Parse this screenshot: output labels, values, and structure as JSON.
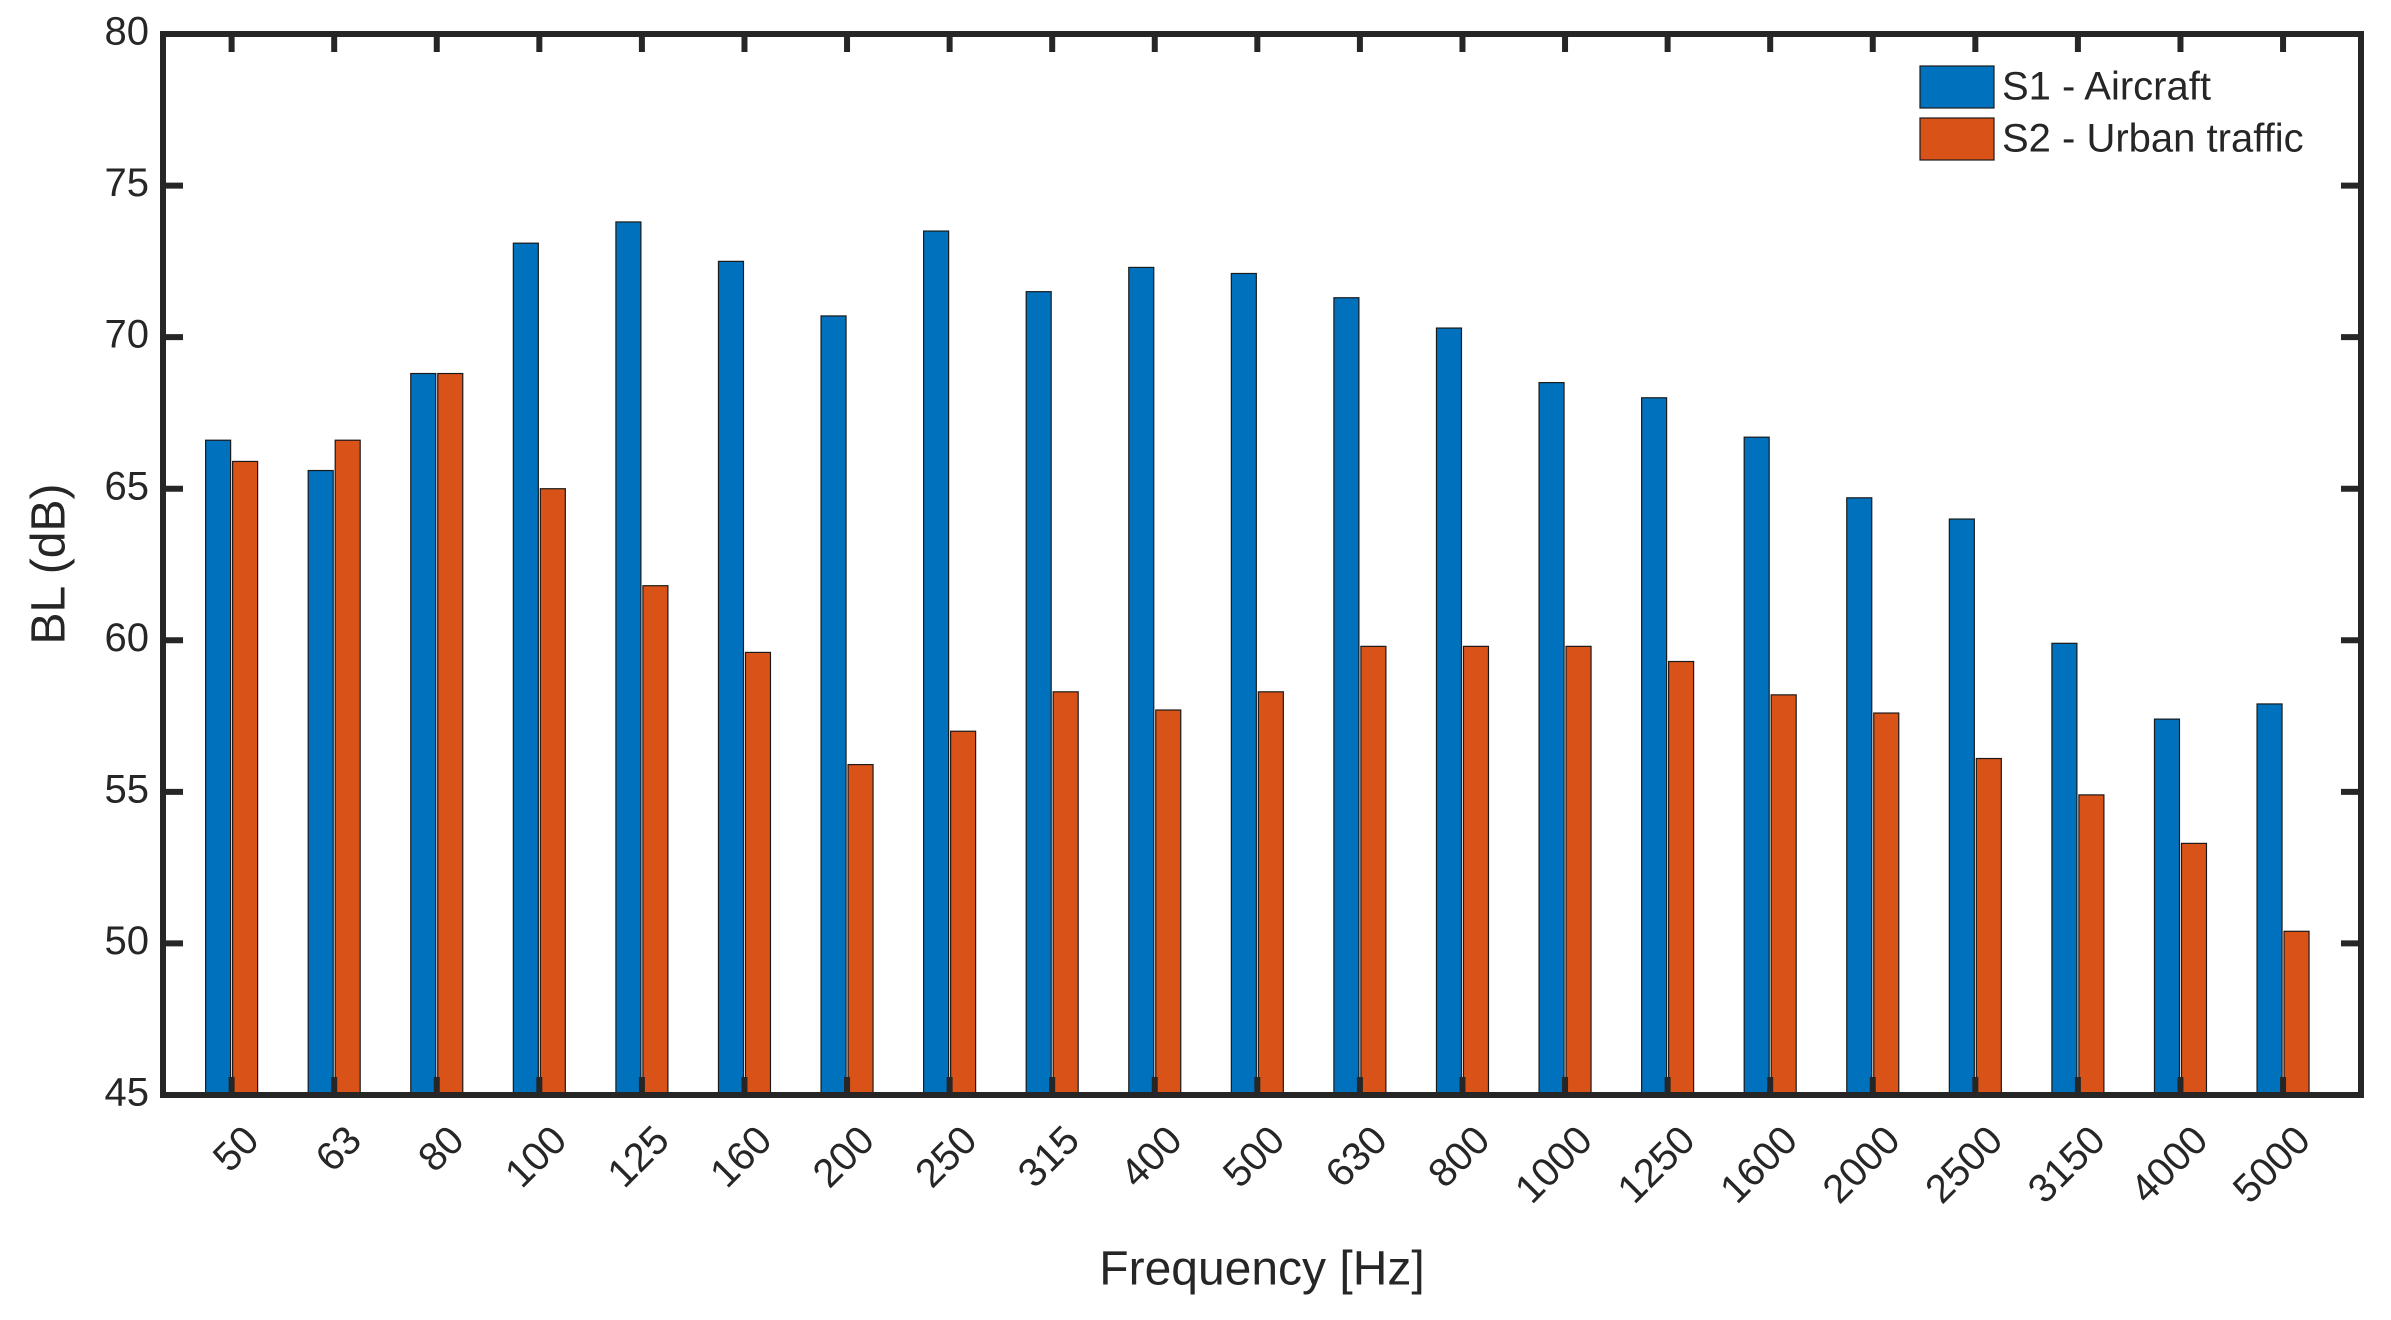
{
  "chart_data": {
    "type": "bar",
    "x_label": "Frequency [Hz]",
    "y_label": "BL (dB)",
    "categories": [
      "50",
      "63",
      "80",
      "100",
      "125",
      "160",
      "200",
      "250",
      "315",
      "400",
      "500",
      "630",
      "800",
      "1000",
      "1250",
      "1600",
      "2000",
      "2500",
      "3150",
      "4000",
      "5000"
    ],
    "series": [
      {
        "name": "S1 - Aircraft",
        "color": "#0072BD",
        "values": [
          66.6,
          65.6,
          68.8,
          73.1,
          73.8,
          72.5,
          70.7,
          73.5,
          71.5,
          72.3,
          72.1,
          71.3,
          70.3,
          68.5,
          68.0,
          66.7,
          64.7,
          64.0,
          59.9,
          57.4,
          57.9
        ]
      },
      {
        "name": "S2 - Urban traffic",
        "color": "#D95319",
        "values": [
          65.9,
          66.6,
          68.8,
          65.0,
          61.8,
          59.6,
          55.9,
          57.0,
          58.3,
          57.7,
          58.3,
          59.8,
          59.8,
          59.8,
          59.3,
          58.2,
          57.6,
          56.1,
          54.9,
          53.3,
          50.4
        ]
      }
    ],
    "ylim": [
      45,
      80
    ],
    "yticks": [
      45,
      50,
      55,
      60,
      65,
      70,
      75,
      80
    ],
    "grid": false,
    "legend": "top-right"
  }
}
